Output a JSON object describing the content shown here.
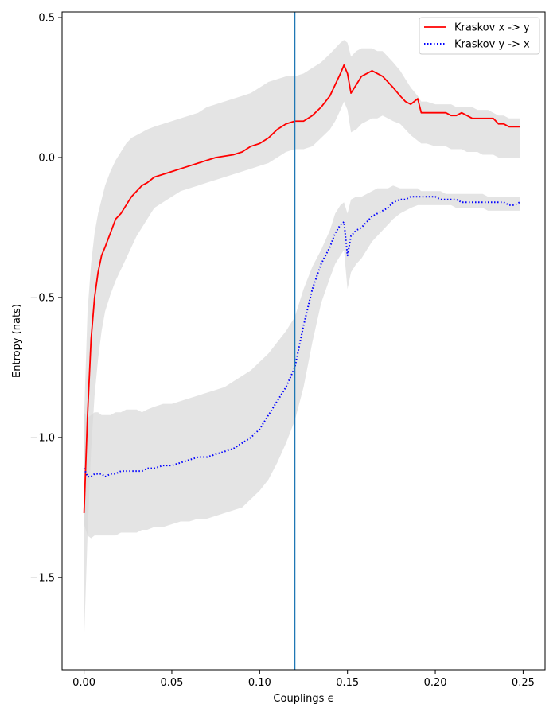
{
  "chart_data": {
    "type": "line",
    "title": "",
    "xlabel": "Couplings ϵ",
    "ylabel": "Entropy (nats)",
    "xlim": [
      -0.0125,
      0.2625
    ],
    "ylim": [
      -1.83,
      0.52
    ],
    "xticks": [
      0.0,
      0.05,
      0.1,
      0.15,
      0.2,
      0.25
    ],
    "xtick_labels": [
      "0.00",
      "0.05",
      "0.10",
      "0.15",
      "0.20",
      "0.25"
    ],
    "yticks": [
      -1.5,
      -1.0,
      -0.5,
      0.0,
      0.5
    ],
    "ytick_labels": [
      "−1.5",
      "−1.0",
      "−0.5",
      "0.0",
      "0.5"
    ],
    "grid": false,
    "legend_position": "top-right",
    "vline": {
      "x": 0.12,
      "color": "#1f77b4"
    },
    "series": [
      {
        "name": "Kraskov x -> y",
        "color": "#ff0000",
        "style": "solid",
        "x": [
          0.0,
          0.002,
          0.004,
          0.006,
          0.008,
          0.01,
          0.012,
          0.015,
          0.018,
          0.021,
          0.024,
          0.027,
          0.03,
          0.033,
          0.036,
          0.04,
          0.045,
          0.05,
          0.055,
          0.06,
          0.065,
          0.07,
          0.075,
          0.08,
          0.085,
          0.09,
          0.095,
          0.1,
          0.105,
          0.11,
          0.115,
          0.12,
          0.125,
          0.13,
          0.135,
          0.14,
          0.143,
          0.146,
          0.148,
          0.15,
          0.152,
          0.155,
          0.158,
          0.161,
          0.164,
          0.167,
          0.17,
          0.173,
          0.176,
          0.18,
          0.183,
          0.186,
          0.19,
          0.192,
          0.195,
          0.2,
          0.203,
          0.206,
          0.209,
          0.212,
          0.215,
          0.218,
          0.221,
          0.224,
          0.227,
          0.23,
          0.233,
          0.236,
          0.239,
          0.242,
          0.245,
          0.248
        ],
        "y": [
          -1.27,
          -0.92,
          -0.65,
          -0.5,
          -0.41,
          -0.35,
          -0.32,
          -0.27,
          -0.22,
          -0.2,
          -0.17,
          -0.14,
          -0.12,
          -0.1,
          -0.09,
          -0.07,
          -0.06,
          -0.05,
          -0.04,
          -0.03,
          -0.02,
          -0.01,
          0.0,
          0.005,
          0.01,
          0.02,
          0.04,
          0.05,
          0.07,
          0.1,
          0.12,
          0.13,
          0.13,
          0.15,
          0.18,
          0.22,
          0.26,
          0.3,
          0.33,
          0.3,
          0.23,
          0.26,
          0.29,
          0.3,
          0.31,
          0.3,
          0.29,
          0.27,
          0.25,
          0.22,
          0.2,
          0.19,
          0.21,
          0.16,
          0.16,
          0.16,
          0.16,
          0.16,
          0.15,
          0.15,
          0.16,
          0.15,
          0.14,
          0.14,
          0.14,
          0.14,
          0.14,
          0.12,
          0.12,
          0.11,
          0.11,
          0.11
        ],
        "band_upper": [
          -0.93,
          -0.55,
          -0.38,
          -0.27,
          -0.2,
          -0.15,
          -0.1,
          -0.05,
          -0.01,
          0.02,
          0.05,
          0.07,
          0.08,
          0.09,
          0.1,
          0.11,
          0.12,
          0.13,
          0.14,
          0.15,
          0.16,
          0.18,
          0.19,
          0.2,
          0.21,
          0.22,
          0.23,
          0.25,
          0.27,
          0.28,
          0.29,
          0.29,
          0.3,
          0.32,
          0.34,
          0.37,
          0.39,
          0.41,
          0.42,
          0.41,
          0.36,
          0.38,
          0.39,
          0.39,
          0.39,
          0.38,
          0.38,
          0.36,
          0.34,
          0.31,
          0.28,
          0.25,
          0.22,
          0.2,
          0.2,
          0.19,
          0.19,
          0.19,
          0.19,
          0.18,
          0.18,
          0.18,
          0.18,
          0.17,
          0.17,
          0.17,
          0.16,
          0.15,
          0.15,
          0.14,
          0.14,
          0.14
        ],
        "band_lower": [
          -1.73,
          -1.35,
          -1.05,
          -0.85,
          -0.72,
          -0.62,
          -0.55,
          -0.49,
          -0.44,
          -0.4,
          -0.36,
          -0.32,
          -0.28,
          -0.25,
          -0.22,
          -0.18,
          -0.16,
          -0.14,
          -0.12,
          -0.11,
          -0.1,
          -0.09,
          -0.08,
          -0.07,
          -0.06,
          -0.05,
          -0.04,
          -0.03,
          -0.02,
          0.0,
          0.02,
          0.03,
          0.03,
          0.04,
          0.07,
          0.1,
          0.13,
          0.17,
          0.2,
          0.17,
          0.09,
          0.1,
          0.12,
          0.13,
          0.14,
          0.14,
          0.15,
          0.14,
          0.13,
          0.12,
          0.1,
          0.08,
          0.06,
          0.05,
          0.05,
          0.04,
          0.04,
          0.04,
          0.03,
          0.03,
          0.03,
          0.02,
          0.02,
          0.02,
          0.01,
          0.01,
          0.01,
          0.0,
          0.0,
          0.0,
          0.0,
          0.0
        ]
      },
      {
        "name": "Kraskov y -> x",
        "color": "#0000ff",
        "style": "dotted",
        "x": [
          0.0,
          0.002,
          0.004,
          0.006,
          0.008,
          0.01,
          0.012,
          0.015,
          0.018,
          0.021,
          0.024,
          0.027,
          0.03,
          0.033,
          0.036,
          0.04,
          0.045,
          0.05,
          0.055,
          0.06,
          0.065,
          0.07,
          0.075,
          0.08,
          0.085,
          0.09,
          0.095,
          0.1,
          0.105,
          0.11,
          0.115,
          0.12,
          0.125,
          0.13,
          0.135,
          0.14,
          0.143,
          0.146,
          0.148,
          0.15,
          0.152,
          0.155,
          0.158,
          0.161,
          0.164,
          0.167,
          0.17,
          0.173,
          0.176,
          0.18,
          0.183,
          0.186,
          0.19,
          0.192,
          0.195,
          0.2,
          0.203,
          0.206,
          0.209,
          0.212,
          0.215,
          0.218,
          0.221,
          0.224,
          0.227,
          0.23,
          0.233,
          0.236,
          0.239,
          0.242,
          0.245,
          0.248
        ],
        "y": [
          -1.11,
          -1.14,
          -1.14,
          -1.13,
          -1.13,
          -1.13,
          -1.14,
          -1.13,
          -1.13,
          -1.12,
          -1.12,
          -1.12,
          -1.12,
          -1.12,
          -1.11,
          -1.11,
          -1.1,
          -1.1,
          -1.09,
          -1.08,
          -1.07,
          -1.07,
          -1.06,
          -1.05,
          -1.04,
          -1.02,
          -1.0,
          -0.97,
          -0.92,
          -0.87,
          -0.82,
          -0.75,
          -0.6,
          -0.47,
          -0.38,
          -0.32,
          -0.27,
          -0.24,
          -0.23,
          -0.35,
          -0.28,
          -0.26,
          -0.25,
          -0.23,
          -0.21,
          -0.2,
          -0.19,
          -0.18,
          -0.16,
          -0.15,
          -0.15,
          -0.14,
          -0.14,
          -0.14,
          -0.14,
          -0.14,
          -0.15,
          -0.15,
          -0.15,
          -0.15,
          -0.16,
          -0.16,
          -0.16,
          -0.16,
          -0.16,
          -0.16,
          -0.16,
          -0.16,
          -0.16,
          -0.17,
          -0.17,
          -0.16
        ],
        "band_upper": [
          -0.91,
          -0.93,
          -0.92,
          -0.91,
          -0.91,
          -0.92,
          -0.92,
          -0.92,
          -0.91,
          -0.91,
          -0.9,
          -0.9,
          -0.9,
          -0.91,
          -0.9,
          -0.89,
          -0.88,
          -0.88,
          -0.87,
          -0.86,
          -0.85,
          -0.84,
          -0.83,
          -0.82,
          -0.8,
          -0.78,
          -0.76,
          -0.73,
          -0.7,
          -0.66,
          -0.62,
          -0.57,
          -0.47,
          -0.39,
          -0.33,
          -0.26,
          -0.2,
          -0.17,
          -0.16,
          -0.2,
          -0.15,
          -0.14,
          -0.14,
          -0.13,
          -0.12,
          -0.11,
          -0.11,
          -0.11,
          -0.1,
          -0.11,
          -0.11,
          -0.11,
          -0.11,
          -0.12,
          -0.12,
          -0.12,
          -0.12,
          -0.13,
          -0.13,
          -0.13,
          -0.13,
          -0.13,
          -0.13,
          -0.13,
          -0.13,
          -0.14,
          -0.14,
          -0.14,
          -0.14,
          -0.14,
          -0.14,
          -0.14
        ],
        "band_lower": [
          -1.31,
          -1.35,
          -1.36,
          -1.35,
          -1.35,
          -1.35,
          -1.35,
          -1.35,
          -1.35,
          -1.34,
          -1.34,
          -1.34,
          -1.34,
          -1.33,
          -1.33,
          -1.32,
          -1.32,
          -1.31,
          -1.3,
          -1.3,
          -1.29,
          -1.29,
          -1.28,
          -1.27,
          -1.26,
          -1.25,
          -1.22,
          -1.19,
          -1.15,
          -1.09,
          -1.02,
          -0.94,
          -0.82,
          -0.66,
          -0.52,
          -0.43,
          -0.38,
          -0.35,
          -0.33,
          -0.47,
          -0.41,
          -0.38,
          -0.36,
          -0.33,
          -0.3,
          -0.28,
          -0.26,
          -0.24,
          -0.22,
          -0.2,
          -0.19,
          -0.18,
          -0.17,
          -0.17,
          -0.17,
          -0.17,
          -0.17,
          -0.17,
          -0.17,
          -0.18,
          -0.18,
          -0.18,
          -0.18,
          -0.18,
          -0.18,
          -0.19,
          -0.19,
          -0.19,
          -0.19,
          -0.19,
          -0.19,
          -0.19
        ]
      }
    ]
  },
  "colors": {
    "band_fill": "#d9d9d9",
    "axis": "#000000",
    "background": "#ffffff"
  }
}
